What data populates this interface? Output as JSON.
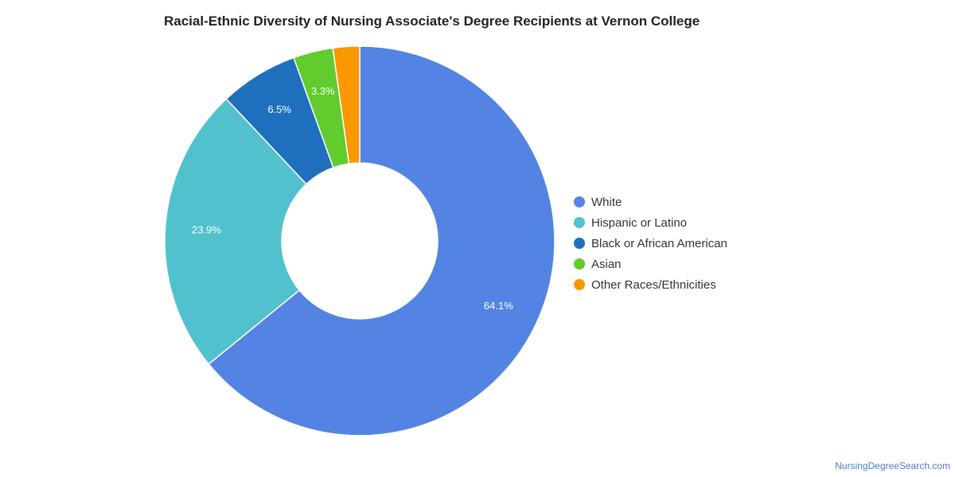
{
  "chart_data": {
    "type": "pie",
    "title": "Racial-Ethnic Diversity of Nursing Associate's Degree Recipients at Vernon College",
    "hole": "donut",
    "legend_position": "right",
    "categories": [
      "White",
      "Hispanic or Latino",
      "Black or African American",
      "Asian",
      "Other Races/Ethnicities"
    ],
    "values": [
      64.1,
      23.9,
      6.5,
      3.3,
      2.2
    ],
    "data_labels": [
      "64.1%",
      "23.9%",
      "6.5%",
      "3.3%",
      ""
    ],
    "colors": [
      "#5384e3",
      "#51c1ce",
      "#1f6fbf",
      "#62cb2e",
      "#fb9700"
    ]
  },
  "footer": {
    "credit": "NursingDegreeSearch.com"
  }
}
